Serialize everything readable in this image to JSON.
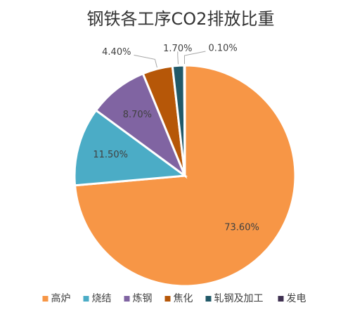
{
  "chart_data": {
    "type": "pie",
    "title": "钢铁各工序CO2排放比重",
    "categories": [
      "高炉",
      "烧结",
      "炼钢",
      "焦化",
      "轧钢及加工",
      "发电"
    ],
    "values": [
      73.6,
      11.5,
      8.7,
      4.4,
      1.7,
      0.1
    ],
    "value_labels": [
      "73.60%",
      "11.50%",
      "8.70%",
      "4.40%",
      "1.70%",
      "0.10%"
    ],
    "colors": [
      "#f79646",
      "#4bacc6",
      "#8064a2",
      "#b65708",
      "#215968",
      "#3f3151"
    ],
    "legend": "bottom"
  }
}
